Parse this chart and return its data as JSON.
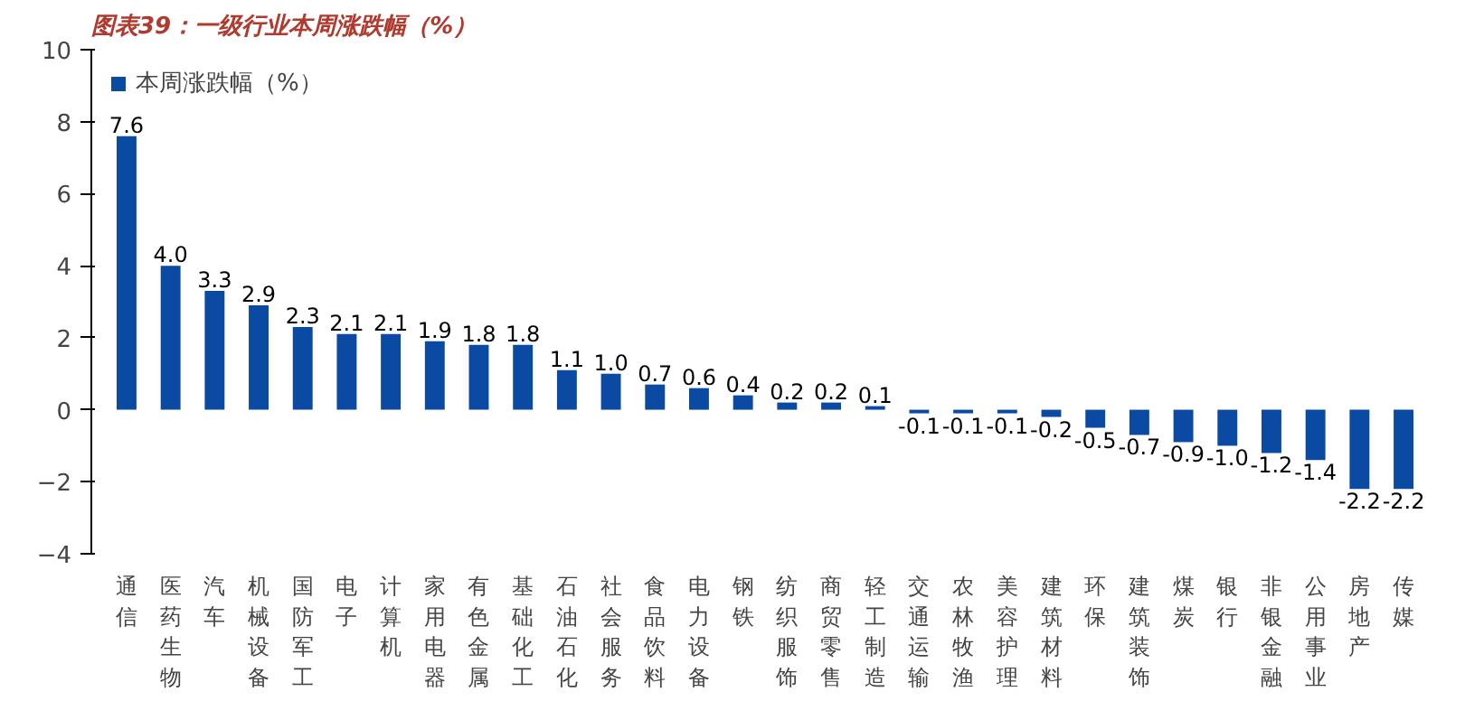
{
  "chart_data": {
    "type": "bar",
    "title": "图表39：一级行业本周涨跌幅（%）",
    "categories": [
      "通信",
      "医药生物",
      "汽车",
      "机械设备",
      "国防军工",
      "电子",
      "计算机",
      "家用电器",
      "有色金属",
      "基础化工",
      "石油石化",
      "社会服务",
      "食品饮料",
      "电力设备",
      "钢铁",
      "纺织服饰",
      "商贸零售",
      "轻工制造",
      "交通运输",
      "农林牧渔",
      "美容护理",
      "建筑材料",
      "环保",
      "建筑装饰",
      "煤炭",
      "银行",
      "非银金融",
      "公用事业",
      "房地产",
      "传媒"
    ],
    "series": [
      {
        "name": "本周涨跌幅（%）",
        "color": "#0b4aa2",
        "values": [
          7.6,
          4.0,
          3.3,
          2.9,
          2.3,
          2.1,
          2.1,
          1.9,
          1.8,
          1.8,
          1.1,
          1.0,
          0.7,
          0.6,
          0.4,
          0.2,
          0.2,
          0.1,
          -0.1,
          -0.1,
          -0.1,
          -0.2,
          -0.5,
          -0.7,
          -0.9,
          -1.0,
          -1.2,
          -1.4,
          -2.2,
          -2.2
        ],
        "value_labels": [
          "7.6",
          "4.0",
          "3.3",
          "2.9",
          "2.3",
          "2.1",
          "2.1",
          "1.9",
          "1.8",
          "1.8",
          "1.1",
          "1.0",
          "0.7",
          "0.6",
          "0.4",
          "0.2",
          "0.2",
          "0.1",
          "-0.1",
          "-0.1",
          "-0.1",
          "-0.2",
          "-0.5",
          "-0.7",
          "-0.9",
          "-1.0",
          "-1.2",
          "-1.4",
          "-2.2",
          "-2.2"
        ]
      }
    ],
    "ylim": [
      -4,
      10
    ],
    "yticks": [
      -4,
      -2,
      0,
      2,
      4,
      6,
      8,
      10
    ],
    "grid": false,
    "legend": "top left"
  }
}
